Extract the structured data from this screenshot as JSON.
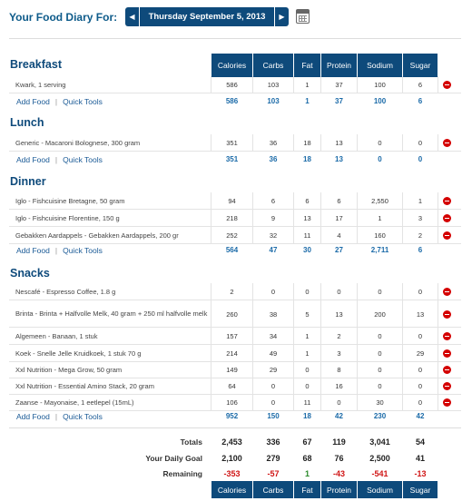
{
  "header": {
    "label": "Your Food Diary For:",
    "date": "Thursday September 5, 2013",
    "prev_icon": "triangle-left",
    "next_icon": "triangle-right",
    "calendar_icon": "calendar"
  },
  "columns": [
    "Calories",
    "Carbs",
    "Fat",
    "Protein",
    "Sodium",
    "Sugar"
  ],
  "links": {
    "add_food": "Add Food",
    "separator": "|",
    "quick_tools": "Quick Tools"
  },
  "meals": {
    "breakfast": {
      "title": "Breakfast",
      "entries": [
        {
          "name": "Kwark, 1 serving",
          "values": [
            "586",
            "103",
            "1",
            "37",
            "100",
            "6"
          ]
        }
      ],
      "totals": [
        "586",
        "103",
        "1",
        "37",
        "100",
        "6"
      ]
    },
    "lunch": {
      "title": "Lunch",
      "entries": [
        {
          "name": "Generic - Macaroni Bolognese, 300 gram",
          "values": [
            "351",
            "36",
            "18",
            "13",
            "0",
            "0"
          ]
        }
      ],
      "totals": [
        "351",
        "36",
        "18",
        "13",
        "0",
        "0"
      ]
    },
    "dinner": {
      "title": "Dinner",
      "entries": [
        {
          "name": "Iglo - Fishcuisine Bretagne, 50 gram",
          "values": [
            "94",
            "6",
            "6",
            "6",
            "2,550",
            "1"
          ]
        },
        {
          "name": "Iglo - Fishcuisine Florentine, 150 g",
          "values": [
            "218",
            "9",
            "13",
            "17",
            "1",
            "3"
          ]
        },
        {
          "name": "Gebakken Aardappels - Gebakken Aardappels, 200 gr",
          "values": [
            "252",
            "32",
            "11",
            "4",
            "160",
            "2"
          ]
        }
      ],
      "totals": [
        "564",
        "47",
        "30",
        "27",
        "2,711",
        "6"
      ]
    },
    "snacks": {
      "title": "Snacks",
      "entries": [
        {
          "name": "Nescafé - Espresso Coffee, 1.8 g",
          "values": [
            "2",
            "0",
            "0",
            "0",
            "0",
            "0"
          ]
        },
        {
          "name": "Brinta - Brinta + Halfvolle Melk, 40 gram + 250 ml halfvolle melk",
          "values": [
            "260",
            "38",
            "5",
            "13",
            "200",
            "13"
          ]
        },
        {
          "name": "Algemeen - Banaan, 1 stuk",
          "values": [
            "157",
            "34",
            "1",
            "2",
            "0",
            "0"
          ]
        },
        {
          "name": "Koek - Snelle Jelle Kruidkoek, 1 stuk 70 g",
          "values": [
            "214",
            "49",
            "1",
            "3",
            "0",
            "29"
          ]
        },
        {
          "name": "Xxl Nutrition - Mega Grow, 50 gram",
          "values": [
            "149",
            "29",
            "0",
            "8",
            "0",
            "0"
          ]
        },
        {
          "name": "Xxl Nutrition - Essential Amino Stack, 20 gram",
          "values": [
            "64",
            "0",
            "0",
            "16",
            "0",
            "0"
          ]
        },
        {
          "name": "Zaanse - Mayonaise, 1 eetlepel (15mL)",
          "values": [
            "106",
            "0",
            "11",
            "0",
            "30",
            "0"
          ]
        }
      ],
      "totals": [
        "952",
        "150",
        "18",
        "42",
        "230",
        "42"
      ]
    }
  },
  "summary": {
    "totals": {
      "label": "Totals",
      "values": [
        "2,453",
        "336",
        "67",
        "119",
        "3,041",
        "54"
      ]
    },
    "goal": {
      "label": "Your Daily Goal",
      "values": [
        "2,100",
        "279",
        "68",
        "76",
        "2,500",
        "41"
      ]
    },
    "remaining": {
      "label": "Remaining",
      "values": [
        "-353",
        "-57",
        "1",
        "-43",
        "-541",
        "-13"
      ]
    }
  },
  "colors": {
    "header_blue": "#0e4a7b",
    "link_blue": "#1a5a96",
    "negative_red": "#d01515",
    "positive_green": "#2a8a2a",
    "delete_red": "#d40000"
  }
}
